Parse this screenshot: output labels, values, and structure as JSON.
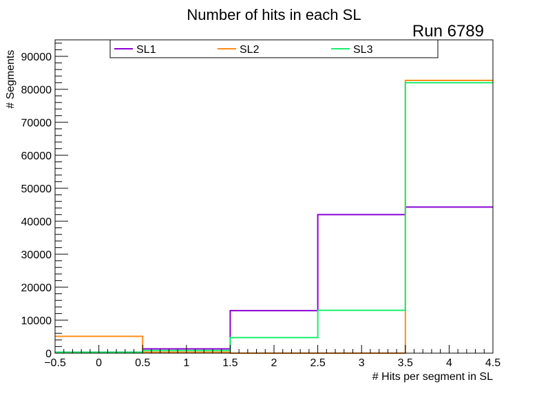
{
  "chart_data": {
    "type": "histogram-step",
    "title": "Number of hits in each SL",
    "annotation": "Run 6789",
    "xlabel": "# Hits per segment in SL",
    "ylabel": "# Segments",
    "xlim": [
      -0.5,
      4.5
    ],
    "ylim": [
      0,
      95000
    ],
    "bin_edges": [
      -0.5,
      0.5,
      1.5,
      2.5,
      3.5,
      4.5
    ],
    "x_ticks": [
      -0.5,
      0,
      0.5,
      1,
      1.5,
      2,
      2.5,
      3,
      3.5,
      4,
      4.5
    ],
    "x_tick_labels": [
      "−0.5",
      "0",
      "0.5",
      "1",
      "1.5",
      "2",
      "2.5",
      "3",
      "3.5",
      "4",
      "4.5"
    ],
    "y_ticks": [
      0,
      10000,
      20000,
      30000,
      40000,
      50000,
      60000,
      70000,
      80000,
      90000
    ],
    "y_tick_labels": [
      "0",
      "10000",
      "20000",
      "30000",
      "40000",
      "50000",
      "60000",
      "70000",
      "80000",
      "90000"
    ],
    "legend_position": "top",
    "series": [
      {
        "name": "SL1",
        "color": "#8a00d4",
        "values": [
          300,
          1300,
          12900,
          42000,
          44300
        ]
      },
      {
        "name": "SL2",
        "color": "#ff8c1a",
        "values": [
          5100,
          300,
          0,
          0,
          82700
        ]
      },
      {
        "name": "SL3",
        "color": "#14f06a",
        "values": [
          300,
          800,
          4700,
          13000,
          82000
        ]
      }
    ]
  }
}
